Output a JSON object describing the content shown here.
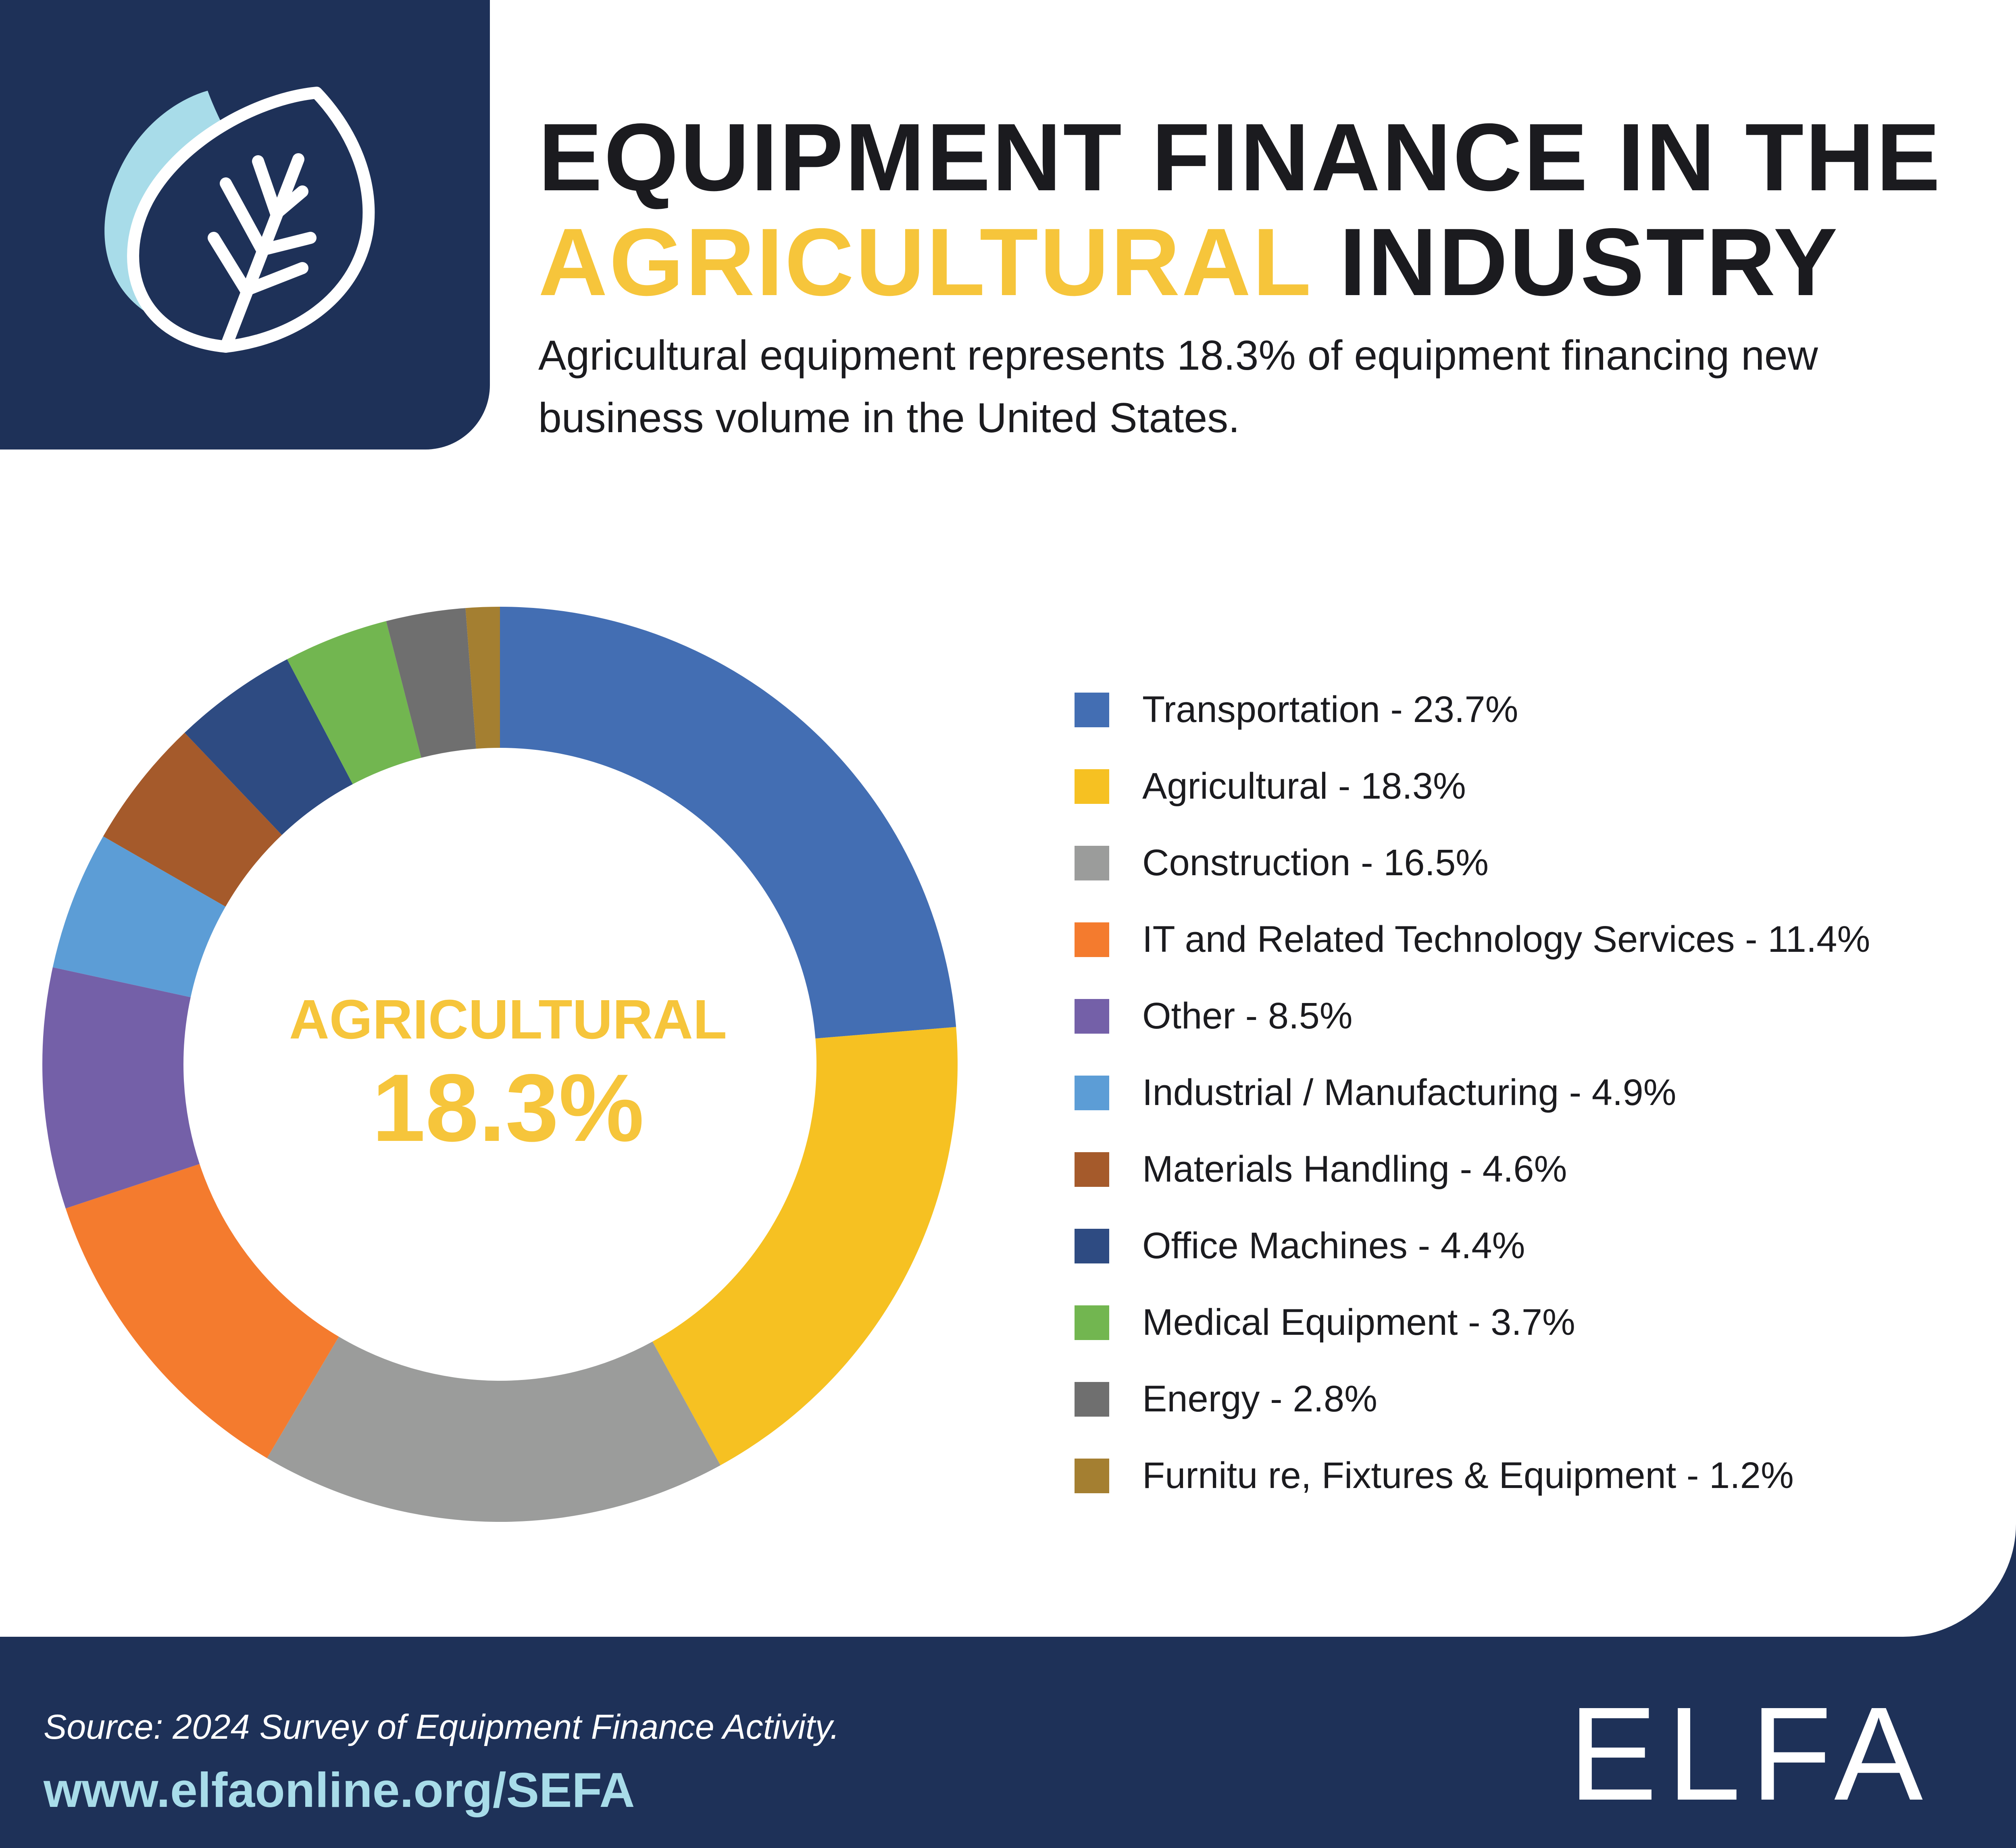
{
  "header": {
    "title_line1": "EQUIPMENT FINANCE IN THE",
    "title_accent": "AGRICULTURAL",
    "title_rest": "INDUSTRY",
    "subtitle": "Agricultural equipment represents 18.3% of equipment financing new business volume in the United States.",
    "logo_icon": "leaf-icon"
  },
  "colors": {
    "navy": "#1e3158",
    "accent_yellow": "#f6c53b",
    "leaf_light": "#a8dce9",
    "link": "#a8dce9"
  },
  "chart_data": {
    "type": "pie",
    "style": "donut",
    "center_label": "AGRICULTURAL",
    "center_value": "18.3%",
    "legend_position": "right",
    "slices": [
      {
        "label": "Transportation",
        "value": 23.7,
        "display": "Transportation - 23.7%",
        "color": "#436eb3"
      },
      {
        "label": "Agricultural",
        "value": 18.3,
        "display": "Agricultural - 18.3%",
        "color": "#f6c122"
      },
      {
        "label": "Construction",
        "value": 16.5,
        "display": "Construction - 16.5%",
        "color": "#9b9c9b"
      },
      {
        "label": "IT and Related Technology Services",
        "value": 11.4,
        "display": "IT and Related Technology Services - 11.4%",
        "color": "#f47b2e"
      },
      {
        "label": "Other",
        "value": 8.5,
        "display": "Other - 8.5%",
        "color": "#7460a8"
      },
      {
        "label": "Industrial / Manufacturing",
        "value": 4.9,
        "display": "Industrial / Manufacturing - 4.9%",
        "color": "#5c9dd6"
      },
      {
        "label": "Materials Handling",
        "value": 4.6,
        "display": "Materials Handling - 4.6%",
        "color": "#a55a2b"
      },
      {
        "label": "Office Machines",
        "value": 4.4,
        "display": "Office Machines - 4.4%",
        "color": "#2e4b82"
      },
      {
        "label": "Medical Equipment",
        "value": 3.7,
        "display": "Medical Equipment - 3.7%",
        "color": "#72b650"
      },
      {
        "label": "Energy",
        "value": 2.8,
        "display": "Energy - 2.8%",
        "color": "#6f6f6f"
      },
      {
        "label": "Furniture, Fixtures & Equipment",
        "value": 1.2,
        "display": "Furnitu re, Fixtures & Equipment - 1.2%",
        "color": "#a47f31"
      }
    ]
  },
  "footer": {
    "source": "Source: 2024 Survey of Equipment Finance Activity.",
    "link": "www.elfaonline.org/SEFA",
    "brand": "ELFA"
  }
}
